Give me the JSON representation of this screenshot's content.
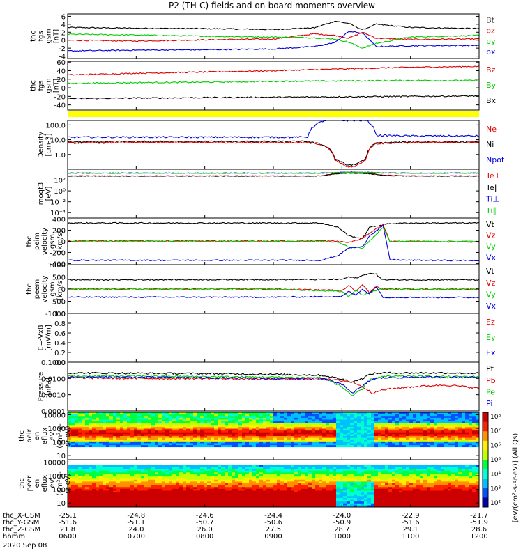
{
  "title": "P2 (TH-C) fields and on-board moments overview",
  "chart_data": [
    {
      "type": "line",
      "ylabel": [
        "thc",
        "fgs",
        "gsm",
        "[nT]"
      ],
      "yticks": [
        -4,
        -2,
        0,
        2,
        4,
        6
      ],
      "ylim": [
        -4.6,
        6.6
      ],
      "legend": [
        "Bt",
        "bz",
        "by",
        "bx"
      ],
      "colors": [
        "#000000",
        "#dd0000",
        "#00cc00",
        "#0000dd"
      ],
      "x": [
        600,
        700,
        800,
        900,
        960,
        990,
        1010,
        1030,
        1050,
        1100,
        1200
      ],
      "series": [
        {
          "name": "Bt",
          "values": [
            3.2,
            3.0,
            2.9,
            2.7,
            3.1,
            4.8,
            4.2,
            2.6,
            4.0,
            3.2,
            2.9
          ]
        },
        {
          "name": "bz",
          "values": [
            0.0,
            -0.2,
            0.1,
            0.3,
            1.6,
            1.2,
            0.5,
            2.0,
            0.5,
            0.2,
            0.3
          ]
        },
        {
          "name": "by",
          "values": [
            1.5,
            1.3,
            1.0,
            0.8,
            0.6,
            0.3,
            -0.5,
            -2.0,
            -0.8,
            0.8,
            1.2
          ]
        },
        {
          "name": "bx",
          "values": [
            -2.7,
            -2.5,
            -2.4,
            -2.2,
            -1.6,
            -0.6,
            2.2,
            1.8,
            -1.6,
            -1.4,
            -1.3
          ]
        }
      ]
    },
    {
      "type": "line",
      "ylabel": [
        "thc",
        "fgs",
        "gsm",
        "[nT]"
      ],
      "yticks": [
        -40,
        -20,
        0,
        20,
        40,
        60
      ],
      "ylim": [
        -52,
        62
      ],
      "legend": [
        "Bz",
        "By",
        "Bx"
      ],
      "colors": [
        "#dd0000",
        "#00cc00",
        "#000000"
      ],
      "x": [
        600,
        700,
        800,
        900,
        1000,
        1100,
        1200
      ],
      "series": [
        {
          "name": "Bz",
          "values": [
            30,
            34,
            37,
            40,
            44,
            48,
            50
          ]
        },
        {
          "name": "By",
          "values": [
            10,
            12,
            13,
            15,
            16,
            17,
            17
          ]
        },
        {
          "name": "Bx",
          "values": [
            -25,
            -24,
            -23,
            -22,
            -21,
            -20,
            -19
          ]
        }
      ]
    },
    {
      "type": "line",
      "log": true,
      "ylabel": [
        "Density",
        "[cm-3]"
      ],
      "yticks": [
        1,
        10,
        100
      ],
      "yticklabels": [
        "1.0",
        "10.0",
        "100.0"
      ],
      "ylim": [
        0.1,
        200
      ],
      "legend": [
        "Ne",
        "Ni",
        "Npot"
      ],
      "colors": [
        "#dd0000",
        "#000000",
        "#0000dd"
      ],
      "x": [
        600,
        700,
        800,
        900,
        950,
        975,
        990,
        1005,
        1020,
        1035,
        1050,
        1100,
        1200
      ],
      "series": [
        {
          "name": "Npot",
          "values": [
            15,
            15,
            15,
            15,
            15,
            200,
            200,
            200,
            200,
            200,
            20,
            18,
            18
          ]
        },
        {
          "name": "Ni",
          "values": [
            7,
            7.5,
            7.5,
            7.5,
            7.5,
            4,
            0.5,
            0.2,
            0.2,
            0.5,
            6,
            7,
            7
          ]
        },
        {
          "name": "Ne",
          "values": [
            6,
            6.5,
            6.5,
            6.5,
            6.5,
            3.5,
            0.4,
            0.15,
            0.15,
            0.4,
            5.5,
            6.5,
            6.5
          ]
        }
      ]
    },
    {
      "type": "line",
      "log": true,
      "ylabel": [
        "moqt3",
        "[eV]"
      ],
      "yticks": [
        0.0001,
        0.01,
        1,
        100
      ],
      "yticklabels": [
        "10⁻⁴",
        "10⁻²",
        "10⁰",
        "10²"
      ],
      "ylim": [
        1e-05,
        10000
      ],
      "legend": [
        "Te⊥",
        "Te∥",
        "Ti⊥",
        "Ti∥"
      ],
      "colors": [
        "#dd0000",
        "#000000",
        "#0000dd",
        "#00cc00"
      ],
      "x": [
        600,
        900,
        970,
        990,
        1010,
        1030,
        1060,
        1100,
        1200
      ],
      "series": [
        {
          "name": "Te⊥",
          "values": [
            600,
            600,
            600,
            1500,
            2000,
            2000,
            800,
            600,
            600
          ]
        },
        {
          "name": "Te∥",
          "values": [
            550,
            550,
            550,
            1400,
            1800,
            1800,
            700,
            550,
            550
          ]
        },
        {
          "name": "Ti⊥",
          "values": [
            2000,
            2000,
            2000,
            2500,
            3000,
            3000,
            2200,
            2000,
            2000
          ]
        },
        {
          "name": "Ti∥",
          "values": [
            1800,
            1800,
            1800,
            2400,
            2800,
            2800,
            2000,
            1800,
            1800
          ]
        }
      ]
    },
    {
      "type": "line",
      "ylabel": [
        "thc",
        "peim",
        "velocity",
        "gsm",
        "[km/s]"
      ],
      "yticks": [
        -400,
        -200,
        0,
        200,
        400
      ],
      "ylim": [
        -420,
        420
      ],
      "legend": [
        "Vt",
        "Vz",
        "Vy",
        "Vx"
      ],
      "colors": [
        "#000000",
        "#dd0000",
        "#00cc00",
        "#0000dd"
      ],
      "x": [
        600,
        900,
        970,
        995,
        1010,
        1030,
        1040,
        1060,
        1070,
        1100,
        1200
      ],
      "series": [
        {
          "name": "Vt",
          "values": [
            330,
            330,
            330,
            250,
            100,
            50,
            250,
            300,
            320,
            330,
            330
          ]
        },
        {
          "name": "Vz",
          "values": [
            10,
            5,
            10,
            0,
            -20,
            50,
            150,
            300,
            0,
            0,
            -10
          ]
        },
        {
          "name": "Vy",
          "values": [
            0,
            0,
            0,
            -20,
            -100,
            -120,
            0,
            250,
            0,
            0,
            0
          ]
        },
        {
          "name": "Vx",
          "values": [
            -340,
            -340,
            -340,
            -250,
            -120,
            -100,
            100,
            280,
            -330,
            -340,
            -345
          ]
        }
      ]
    },
    {
      "type": "line",
      "ylabel": [
        "thc",
        "peem",
        "velocity",
        "gsm",
        "[km/s]"
      ],
      "yticks": [
        -1000,
        -500,
        0,
        500,
        1000
      ],
      "ylim": [
        -1000,
        1000
      ],
      "legend": [
        "Vt",
        "Vz",
        "Vy",
        "Vx"
      ],
      "colors": [
        "#000000",
        "#dd0000",
        "#00cc00",
        "#0000dd"
      ],
      "x": [
        600,
        900,
        1000,
        1010,
        1020,
        1030,
        1040,
        1050,
        1060,
        1100,
        1200
      ],
      "series": [
        {
          "name": "Vt",
          "values": [
            380,
            390,
            400,
            500,
            450,
            550,
            650,
            600,
            380,
            380,
            380
          ]
        },
        {
          "name": "Vz",
          "values": [
            0,
            0,
            -50,
            150,
            -100,
            200,
            -150,
            100,
            0,
            0,
            0
          ]
        },
        {
          "name": "Vy",
          "values": [
            0,
            0,
            -100,
            -300,
            -50,
            -250,
            -150,
            -50,
            0,
            0,
            0
          ]
        },
        {
          "name": "Vx",
          "values": [
            -330,
            -330,
            -300,
            -100,
            -250,
            0,
            -200,
            100,
            -340,
            -340,
            -345
          ]
        }
      ]
    },
    {
      "type": "line",
      "ylabel": [
        "E=-VxB",
        "[mV/m]"
      ],
      "yticks": [
        0,
        0.2,
        0.4,
        0.6,
        0.8,
        1.0
      ],
      "yticklabels": [
        "0.0",
        "0.2",
        "0.4",
        "0.6",
        "0.8",
        "1.0"
      ],
      "ylim": [
        0,
        1
      ],
      "legend": [
        "Ez",
        "Ey",
        "Ex"
      ],
      "colors": [
        "#dd0000",
        "#00cc00",
        "#0000dd"
      ],
      "series": []
    },
    {
      "type": "line",
      "log": true,
      "ylabel": [
        "Pressure",
        "[nPa]"
      ],
      "yticks": [
        0.0001,
        0.001,
        0.01,
        0.1
      ],
      "yticklabels": [
        "0.0001",
        "0.0010",
        "0.0100",
        "0.1000"
      ],
      "ylim": [
        0.0001,
        0.1
      ],
      "legend": [
        "Pt",
        "Pb",
        "Pe",
        "Pi"
      ],
      "colors": [
        "#000000",
        "#dd0000",
        "#00cc00",
        "#0000dd"
      ],
      "x": [
        600,
        700,
        800,
        900,
        970,
        990,
        1005,
        1015,
        1030,
        1045,
        1060,
        1100,
        1150,
        1200
      ],
      "series": [
        {
          "name": "Pt",
          "values": [
            0.022,
            0.021,
            0.02,
            0.018,
            0.016,
            0.011,
            0.008,
            0.006,
            0.01,
            0.02,
            0.022,
            0.022,
            0.022,
            0.021
          ]
        },
        {
          "name": "Pb",
          "values": [
            0.011,
            0.01,
            0.01,
            0.009,
            0.009,
            0.008,
            0.007,
            0.006,
            0.003,
            0.0012,
            0.002,
            0.003,
            0.004,
            0.0025
          ]
        },
        {
          "name": "Pe",
          "values": [
            0.014,
            0.014,
            0.013,
            0.012,
            0.011,
            0.005,
            0.002,
            0.0008,
            0.002,
            0.01,
            0.013,
            0.014,
            0.013,
            0.013
          ]
        },
        {
          "name": "Pi",
          "values": [
            0.012,
            0.012,
            0.011,
            0.01,
            0.01,
            0.006,
            0.003,
            0.0012,
            0.003,
            0.009,
            0.011,
            0.012,
            0.012,
            0.012
          ]
        }
      ]
    },
    {
      "type": "heatmap",
      "ylabel": [
        "thc",
        "peir",
        "en",
        "eflux",
        "eV",
        "(cm²-s-",
        "sr-eV)"
      ],
      "yticks": [
        10,
        100,
        1000,
        10000
      ],
      "yticklabels": [
        "10",
        "100",
        "1000",
        "10000"
      ],
      "ylim": [
        5,
        15000
      ],
      "log": true
    },
    {
      "type": "heatmap",
      "ylabel": [
        "thc",
        "peer",
        "en",
        "eflux",
        "eV",
        "(cm²-s-",
        "sr-eV)"
      ],
      "yticks": [
        10,
        100,
        1000,
        10000
      ],
      "yticklabels": [
        "10",
        "100",
        "1000",
        "10000"
      ],
      "ylim": [
        5,
        15000
      ],
      "log": true
    }
  ],
  "colorbar": {
    "ticks": [
      "10⁸",
      "10⁷",
      "10⁶",
      "10⁵",
      "10⁴",
      "10³",
      "10²"
    ],
    "label": "[eV/(cm²-s-sr-eV)] (All Qs)"
  },
  "xaxis": {
    "rows": [
      {
        "label": "thc_X-GSM",
        "values": [
          "-25.1",
          "-24.8",
          "-24.6",
          "-24.4",
          "-24.0",
          "-22.9",
          "-21.7"
        ]
      },
      {
        "label": "thc_Y-GSM",
        "values": [
          "-51.6",
          "-51.1",
          "-50.7",
          "-50.6",
          "-50.9",
          "-51.6",
          "-51.9"
        ]
      },
      {
        "label": "thc_Z-GSM",
        "values": [
          "21.8",
          "24.0",
          "26.0",
          "27.5",
          "28.7",
          "29.1",
          "28.6"
        ]
      },
      {
        "label": "hhmm",
        "values": [
          "0600",
          "0700",
          "0800",
          "0900",
          "1000",
          "1100",
          "1200"
        ]
      }
    ],
    "date": "2020 Sep 08"
  }
}
